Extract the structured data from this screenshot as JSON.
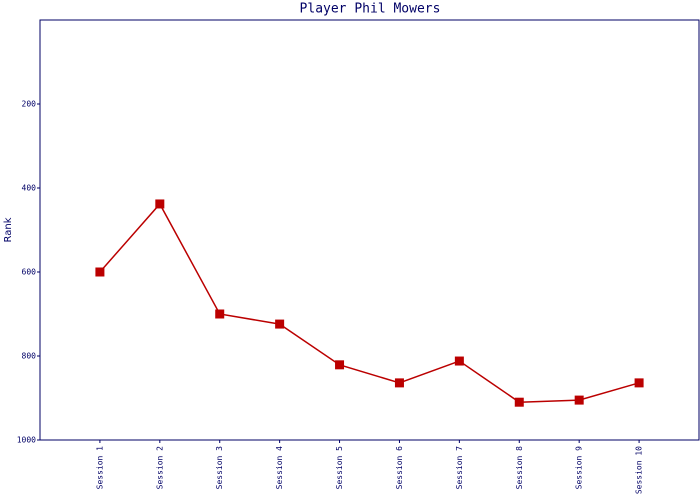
{
  "chart_data": {
    "type": "line",
    "title": "Player Phil Mowers",
    "y_label": "Rank",
    "categories": [
      "Session 1",
      "Session 2",
      "Session 3",
      "Session 4",
      "Session 5",
      "Session 6",
      "Session 7",
      "Session 8",
      "Session 9",
      "Session 10"
    ],
    "series": [
      {
        "name": "Rank",
        "color": "#bb0000",
        "values": [
          600,
          438,
          700,
          724,
          821,
          864,
          812,
          910,
          905,
          864
        ]
      }
    ],
    "ylim": [
      0,
      1000
    ],
    "y_inverted": true,
    "yticks": [
      200,
      400,
      600,
      800,
      1000
    ],
    "grid": false
  }
}
